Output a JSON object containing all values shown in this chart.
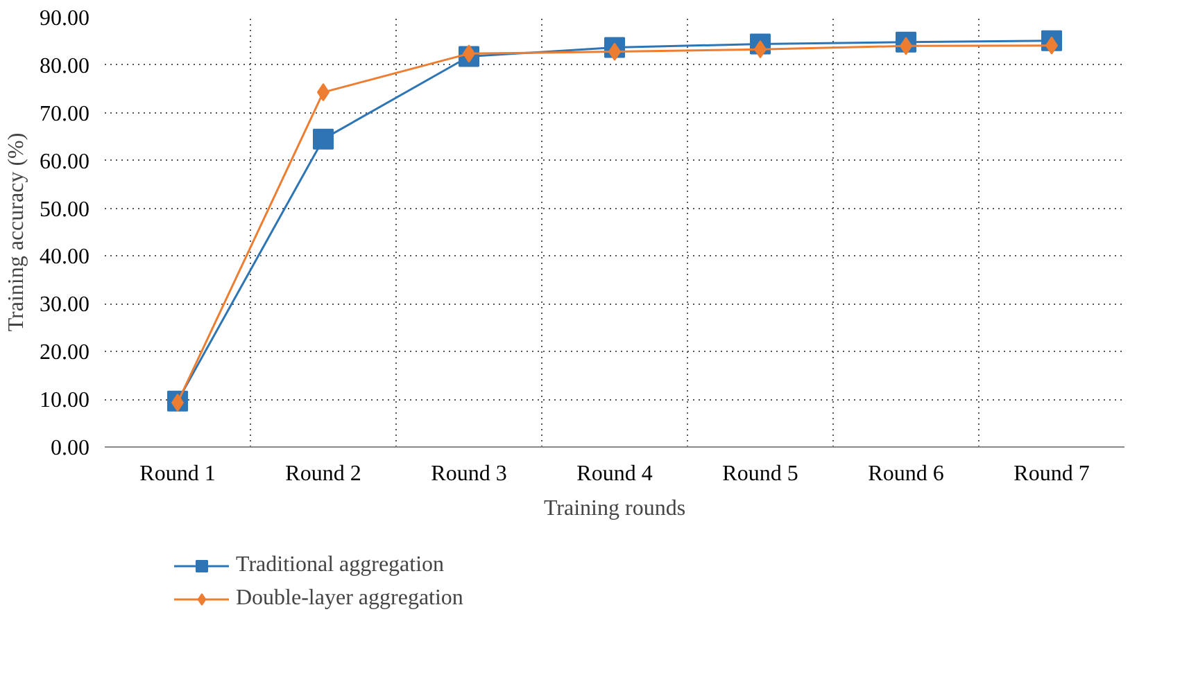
{
  "chart_data": {
    "type": "line",
    "xlabel": "Training rounds",
    "ylabel": "Training accuracy (%)",
    "categories": [
      "Round 1",
      "Round 2",
      "Round 3",
      "Round 4",
      "Round 5",
      "Round 6",
      "Round 7"
    ],
    "series": [
      {
        "name": "Traditional aggregation",
        "color": "#2e75b6",
        "marker": "square",
        "values": [
          9.6,
          64.5,
          81.8,
          83.7,
          84.4,
          84.8,
          85.1
        ]
      },
      {
        "name": "Double-layer aggregation",
        "color": "#ed7d31",
        "marker": "diamond",
        "values": [
          9.3,
          74.3,
          82.4,
          82.8,
          83.3,
          84.0,
          84.1
        ]
      }
    ],
    "ylim": [
      0,
      90
    ],
    "yticks": [
      {
        "value": 0,
        "label": "0.00"
      },
      {
        "value": 10,
        "label": "10.00"
      },
      {
        "value": 20,
        "label": "20.00"
      },
      {
        "value": 30,
        "label": "30.00"
      },
      {
        "value": 40,
        "label": "40.00"
      },
      {
        "value": 50,
        "label": "50.00"
      },
      {
        "value": 60,
        "label": "60.00"
      },
      {
        "value": 70,
        "label": "70.00"
      },
      {
        "value": 80,
        "label": "80.00"
      },
      {
        "value": 90,
        "label": "90.00"
      }
    ],
    "grid": true,
    "legend": "bottom left",
    "line_style": "solid"
  }
}
